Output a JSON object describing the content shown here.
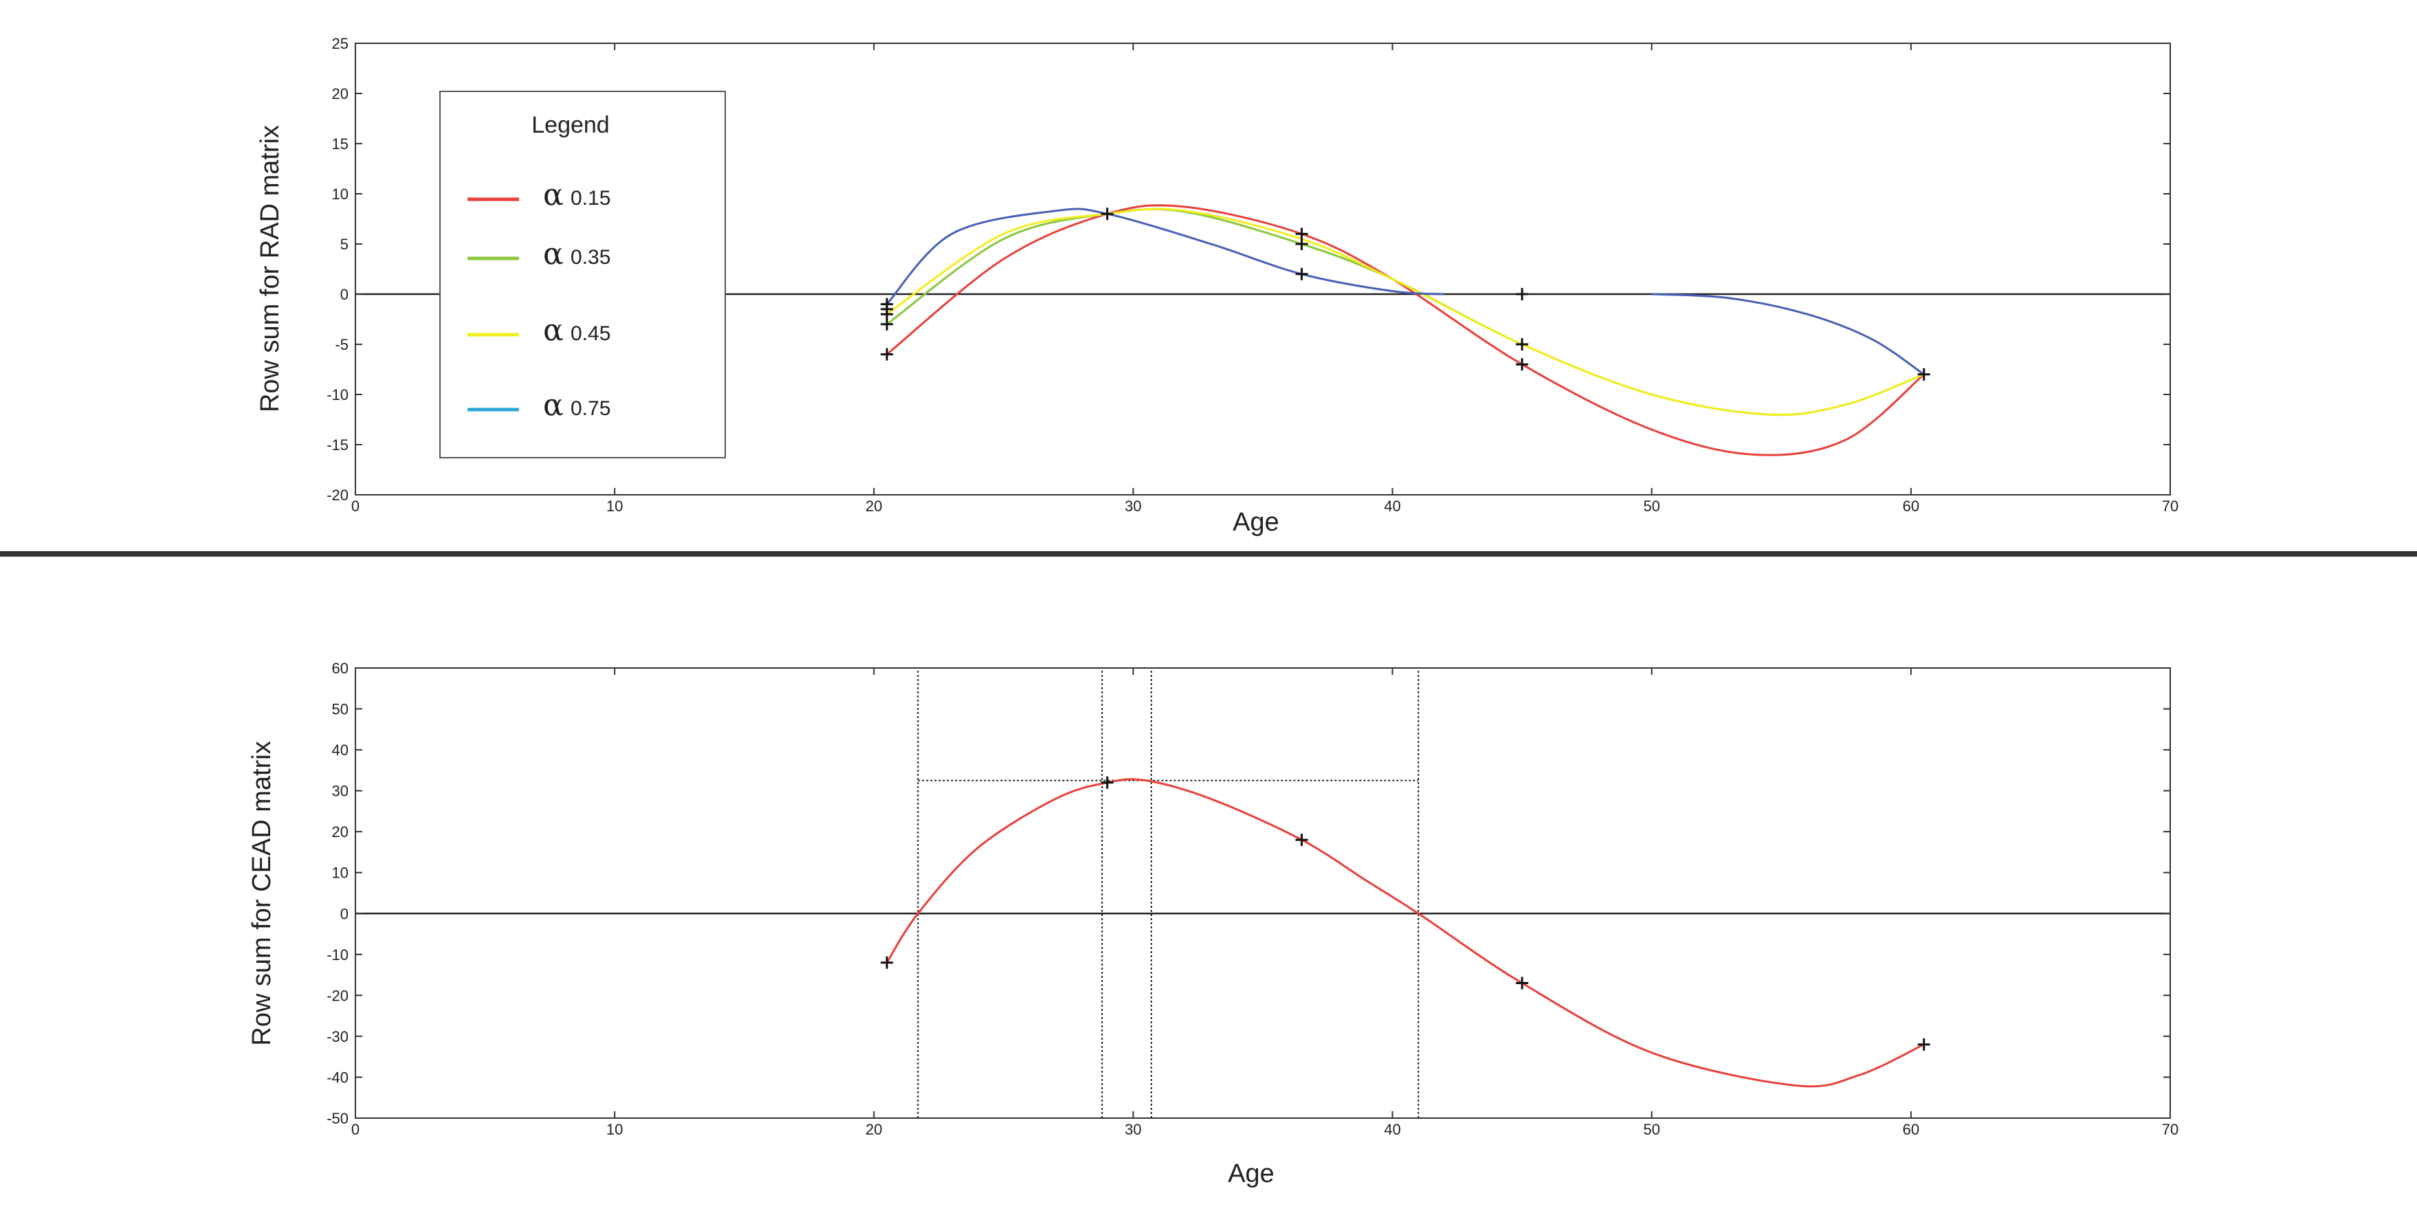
{
  "chart_data": [
    {
      "type": "line",
      "xlabel": "Age",
      "ylabel": "Row sum for RAD matrix",
      "xlim": [
        0,
        70
      ],
      "ylim": [
        -20,
        25
      ],
      "xticks": [
        0,
        10,
        20,
        30,
        40,
        50,
        60,
        70
      ],
      "yticks": [
        -20,
        -15,
        -10,
        -5,
        0,
        5,
        10,
        15,
        20,
        25
      ],
      "zero_line": true,
      "legend": {
        "title": "Legend",
        "placement": "top-left",
        "entries": [
          {
            "symbol": "α",
            "label": "0.15",
            "color": "#e8413c"
          },
          {
            "symbol": "α",
            "label": "0.35",
            "color": "#8cc63f"
          },
          {
            "symbol": "α",
            "label": "0.45",
            "color": "#f2ee1f"
          },
          {
            "symbol": "α",
            "label": "0.75",
            "color": "#2aa7d6"
          }
        ]
      },
      "series": [
        {
          "color": "#e8413c",
          "x": [
            20.5,
            25,
            29,
            32,
            36.5,
            40,
            45,
            50,
            54,
            57.5,
            60.5
          ],
          "y": [
            -6,
            3.5,
            8,
            8.7,
            6,
            1.5,
            -7,
            -13.5,
            -16,
            -14.5,
            -8
          ]
        },
        {
          "color": "#8cc63f",
          "x": [
            20.5,
            25,
            29,
            32,
            36.5,
            40,
            45,
            50,
            54.5,
            57.5,
            60.5
          ],
          "y": [
            -3,
            5.5,
            8,
            8.2,
            5,
            1.5,
            -5,
            -10,
            -12,
            -11,
            -8
          ]
        },
        {
          "color": "#f2ee1f",
          "x": [
            20.5,
            25,
            29,
            32,
            36.5,
            40,
            45,
            50,
            54.5,
            57.5,
            60.5
          ],
          "y": [
            -2,
            6,
            8,
            8.3,
            5.5,
            1.5,
            -5,
            -10,
            -12,
            -11,
            -8
          ]
        },
        {
          "color": "#4a5fb5",
          "x": [
            20.5,
            23,
            27,
            29,
            33,
            36.5,
            40,
            42
          ],
          "y": [
            -1,
            6,
            8.3,
            8,
            5,
            2,
            0.3,
            0
          ]
        },
        {
          "color": "#4a5fb5",
          "x": [
            50,
            53,
            56,
            58.5,
            60.5
          ],
          "y": [
            0,
            -0.4,
            -2,
            -4.5,
            -8
          ]
        }
      ],
      "markers": {
        "x": [
          20.5,
          20.5,
          20.5,
          20.5,
          20.5,
          29,
          36.5,
          36.5,
          36.5,
          45,
          45,
          45,
          60.5
        ],
        "y": [
          -6,
          -3,
          -2,
          -1.5,
          -1,
          8,
          6,
          5,
          2,
          0,
          -5,
          -7,
          -8
        ]
      }
    },
    {
      "type": "line",
      "xlabel": "Age",
      "ylabel": "Row sum for CEAD matrix",
      "xlim": [
        0,
        70
      ],
      "ylim": [
        -50,
        60
      ],
      "xticks": [
        0,
        10,
        20,
        30,
        40,
        50,
        60,
        70
      ],
      "yticks": [
        -50,
        -40,
        -30,
        -20,
        -10,
        0,
        10,
        20,
        30,
        40,
        50,
        60
      ],
      "zero_line": true,
      "series": [
        {
          "color": "#e8413c",
          "x": [
            20.5,
            21.7,
            24,
            27,
            29,
            30.5,
            33,
            36.5,
            39,
            41,
            45,
            50,
            55.5,
            58,
            60.5
          ],
          "y": [
            -12,
            0,
            16,
            28,
            32,
            32.5,
            28,
            18,
            8,
            0,
            -17,
            -34,
            -42,
            -39.5,
            -32
          ]
        }
      ],
      "markers": {
        "x": [
          20.5,
          29,
          36.5,
          45,
          60.5
        ],
        "y": [
          -12,
          32,
          18,
          -17,
          -32
        ]
      },
      "reference_lines": {
        "vertical": [
          {
            "x": 21.7,
            "y_from": -50,
            "y_to": 60
          },
          {
            "x": 28.8,
            "y_from": -50,
            "y_to": 60
          },
          {
            "x": 30.7,
            "y_from": -50,
            "y_to": 60
          },
          {
            "x": 41,
            "y_from": -50,
            "y_to": 60
          }
        ],
        "horizontal": [
          {
            "y": 32.5,
            "x_from": 21.7,
            "x_to": 41
          }
        ]
      }
    }
  ]
}
